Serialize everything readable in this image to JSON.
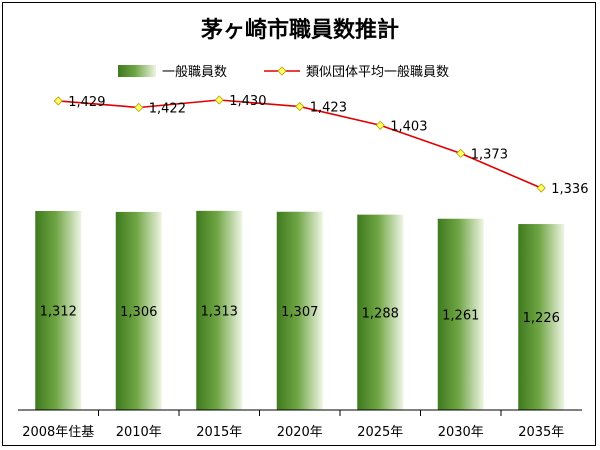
{
  "chart_data": {
    "type": "bar",
    "title": "茅ヶ崎市職員数推計",
    "categories": [
      "2008年住基",
      "2010年",
      "2015年",
      "2020年",
      "2025年",
      "2030年",
      "2035年"
    ],
    "series": [
      {
        "name": "一般職員数",
        "type": "bar",
        "values": [
          1312,
          1306,
          1313,
          1307,
          1288,
          1261,
          1226
        ],
        "labels": [
          "1,312",
          "1,306",
          "1,313",
          "1,307",
          "1,288",
          "1,261",
          "1,226"
        ]
      },
      {
        "name": "類似団体平均一般職員数",
        "type": "line",
        "values": [
          1429,
          1422,
          1430,
          1423,
          1403,
          1373,
          1336
        ],
        "labels": [
          "1,429",
          "1,422",
          "1,430",
          "1,423",
          "1,403",
          "1,373",
          "1,336"
        ]
      }
    ],
    "legend_position": "top",
    "grid": false,
    "colors": {
      "bar_dark": "#3f7a1f",
      "bar_light": "#eef5e4",
      "line": "#e00000",
      "marker": "#ffff66",
      "marker_stroke": "#b89a00"
    }
  }
}
